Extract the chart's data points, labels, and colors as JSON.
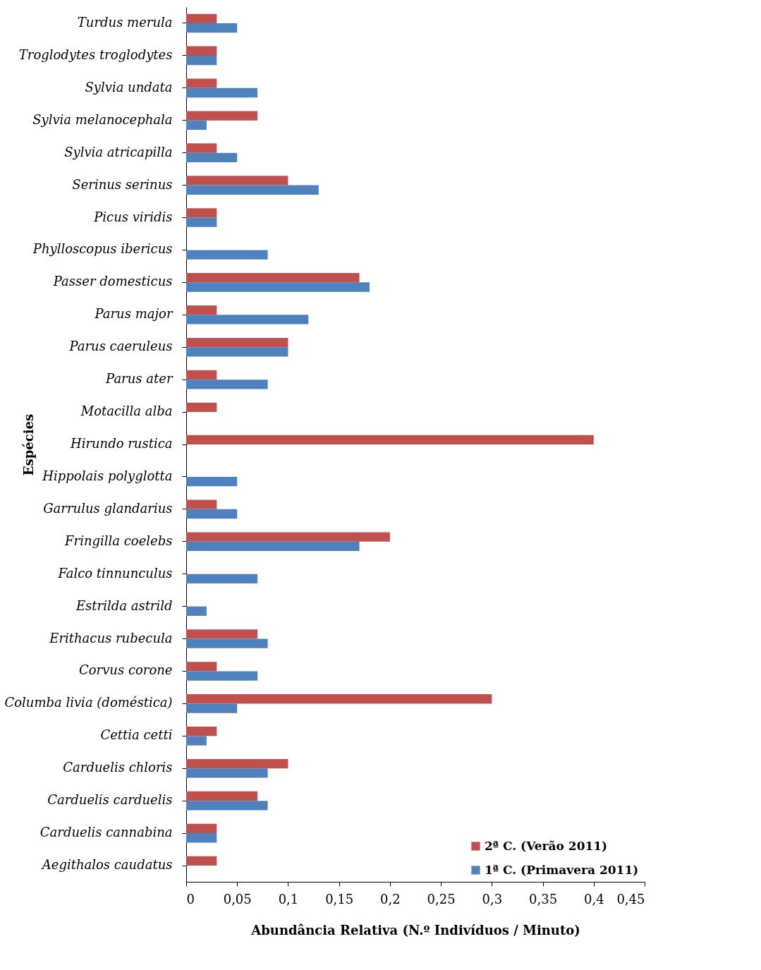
{
  "chart_data": {
    "type": "bar",
    "orientation": "horizontal",
    "xlabel": "Abundância Relativa (N.º Indivíduos / Minuto)",
    "ylabel": "Espécies",
    "categories": [
      "Turdus merula",
      "Troglodytes troglodytes",
      "Sylvia undata",
      "Sylvia melanocephala",
      "Sylvia atricapilla",
      "Serinus serinus",
      "Picus viridis",
      "Phylloscopus ibericus",
      "Passer domesticus",
      "Parus major",
      "Parus caeruleus",
      "Parus ater",
      "Motacilla alba",
      "Hirundo rustica",
      "Hippolais polyglotta",
      "Garrulus glandarius",
      "Fringilla coelebs",
      "Falco tinnunculus",
      "Estrilda astrild",
      "Erithacus rubecula",
      "Corvus corone",
      "Columba livia (doméstica)",
      "Cettia cetti",
      "Carduelis chloris",
      "Carduelis carduelis",
      "Carduelis cannabina",
      "Aegithalos caudatus"
    ],
    "series": [
      {
        "name": "2ª C. (Verão 2011)",
        "color": "#c0504d",
        "values": [
          0.03,
          0.03,
          0.03,
          0.07,
          0.03,
          0.1,
          0.03,
          0,
          0.17,
          0.03,
          0.1,
          0.03,
          0.03,
          0.4,
          0,
          0.03,
          0.2,
          0,
          0,
          0.07,
          0.03,
          0.3,
          0.03,
          0.1,
          0.07,
          0.03,
          0.03
        ]
      },
      {
        "name": "1ª C. (Primavera 2011)",
        "color": "#4f81bd",
        "values": [
          0.05,
          0.03,
          0.07,
          0.02,
          0.05,
          0.13,
          0.03,
          0.08,
          0.18,
          0.12,
          0.1,
          0.08,
          0,
          0,
          0.05,
          0.05,
          0.17,
          0.07,
          0.02,
          0.08,
          0.07,
          0.05,
          0.02,
          0.08,
          0.08,
          0.03,
          0
        ]
      }
    ],
    "xlim": [
      0,
      0.45
    ],
    "xticks": [
      0,
      {
        "value": 0.05,
        "label": "0,05"
      },
      {
        "value": 0.1,
        "label": "0,1"
      },
      {
        "value": 0.15,
        "label": "0,15"
      },
      {
        "value": 0.2,
        "label": "0,2"
      },
      {
        "value": 0.25,
        "label": "0,25"
      },
      {
        "value": 0.3,
        "label": "0,3"
      },
      {
        "value": 0.35,
        "label": "0,35"
      },
      {
        "value": 0.4,
        "label": "0,4"
      },
      {
        "value": 0.45,
        "label": "0,45"
      }
    ],
    "grid": false,
    "legend": "bottom right"
  }
}
